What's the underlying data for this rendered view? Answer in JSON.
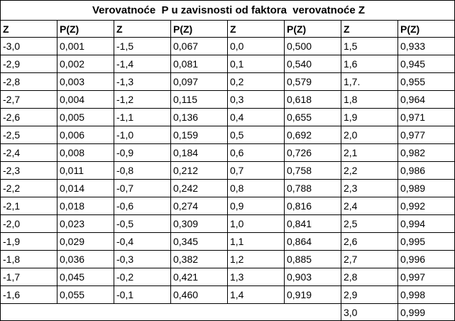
{
  "title": "Verovatnoće  P u zavisnosti od faktora  verovatnoće Z",
  "header": [
    "Z",
    "P(Z)",
    "Z",
    "P(Z)",
    "Z",
    "P(Z)",
    "Z",
    "P(Z)"
  ],
  "rows": [
    [
      "-3,0",
      "0,001",
      "-1,5",
      "0,067",
      "0,0",
      "0,500",
      "1,5",
      "0,933"
    ],
    [
      "-2,9",
      "0,002",
      "-1,4",
      "0,081",
      "0,1",
      "0,540",
      "1,6",
      "0,945"
    ],
    [
      "-2,8",
      "0,003",
      "-1,3",
      "0,097",
      "0,2",
      "0,579",
      "1,7.",
      "0,955"
    ],
    [
      "-2,7",
      "0,004",
      "-1,2",
      "0,115",
      "0,3",
      "0,618",
      "1,8",
      "0,964"
    ],
    [
      "-2,6",
      "0,005",
      "-1,1",
      "0,136",
      "0,4",
      "0,655",
      "1,9",
      "0,971"
    ],
    [
      "-2,5",
      "0,006",
      "-1,0",
      "0,159",
      "0,5",
      "0,692",
      "2,0",
      "0,977"
    ],
    [
      "-2,4",
      "0,008",
      "-0,9",
      "0,184",
      "0,6",
      "0,726",
      "2,1",
      "0,982"
    ],
    [
      "-2,3",
      "0,011",
      "-0,8",
      "0,212",
      "0,7",
      "0,758",
      "2,2",
      "0,986"
    ],
    [
      "-2,2",
      "0,014",
      "-0,7",
      "0,242",
      "0,8",
      "0,788",
      "2,3",
      "0,989"
    ],
    [
      "-2,1",
      "0,018",
      "-0,6",
      "0,274",
      "0,9",
      "0,816",
      "2,4",
      "0,992"
    ],
    [
      "-2,0",
      "0,023",
      "-0,5",
      "0,309",
      "1,0",
      "0,841",
      "2,5",
      "0,994"
    ],
    [
      "-1,9",
      "0,029",
      "-0,4",
      "0,345",
      "1,1",
      "0,864",
      "2,6",
      "0,995"
    ],
    [
      "-1,8",
      "0,036",
      "-0,3",
      "0,382",
      "1,2",
      "0,885",
      "2,7",
      "0,996"
    ],
    [
      "-1,7",
      "0,045",
      "-0,2",
      "0,421",
      "1,3",
      "0,903",
      "2,8",
      "0,997"
    ],
    [
      "-1,6",
      "0,055",
      "-0,1",
      "0,460",
      "1,4",
      "0,919",
      "2,9",
      "0,998"
    ]
  ],
  "last_row": [
    "3,0",
    "0,999"
  ]
}
